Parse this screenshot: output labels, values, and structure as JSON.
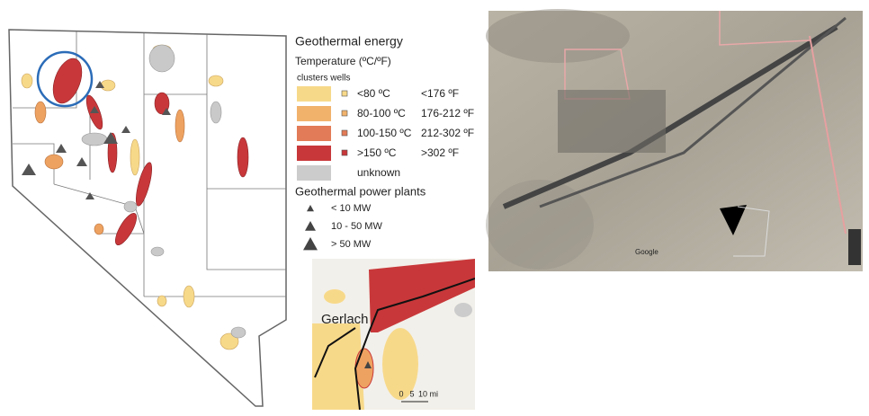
{
  "legend": {
    "title": "Geothermal energy",
    "subtitle": "Temperature (ºC/ºF)",
    "columns_header": "clusters wells",
    "temperature_classes": [
      {
        "celsius": "<80 ºC",
        "fahrenheit": "<176 ºF",
        "color": "#f7d98a"
      },
      {
        "celsius": "80-100 ºC",
        "fahrenheit": "176-212 ºF",
        "color": "#f1b26c"
      },
      {
        "celsius": "100-150 ºC",
        "fahrenheit": "212-302 ºF",
        "color": "#e27b57"
      },
      {
        "celsius": ">150 ºC",
        "fahrenheit": ">302 ºF",
        "color": "#c8383a"
      }
    ],
    "unknown": {
      "label": "unknown",
      "color": "#cccccc"
    }
  },
  "power_plants": {
    "title": "Geothermal power plants",
    "classes": [
      "< 10 MW",
      "10 - 50 MW",
      "> 50 MW"
    ]
  },
  "inset": {
    "place_label": "Gerlach",
    "scale_labels": [
      "0",
      "5",
      "10 mi"
    ]
  },
  "satellite": {
    "logo": "Google"
  }
}
